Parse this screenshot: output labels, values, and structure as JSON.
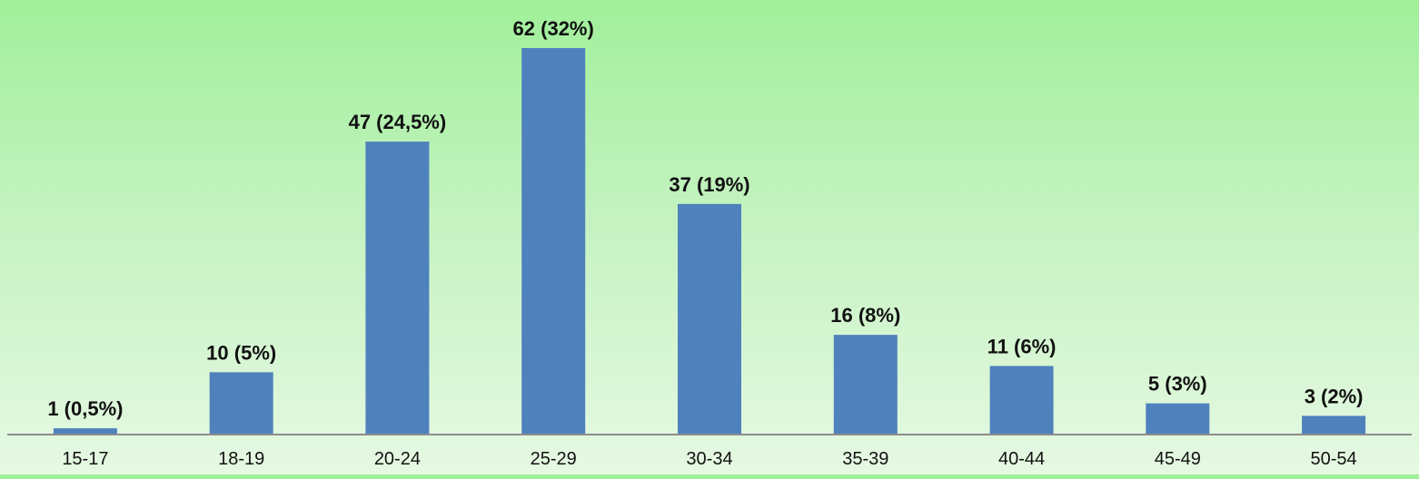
{
  "chart_data": {
    "type": "bar",
    "categories": [
      "15-17",
      "18-19",
      "20-24",
      "25-29",
      "30-34",
      "35-39",
      "40-44",
      "45-49",
      "50-54"
    ],
    "values": [
      1,
      10,
      47,
      62,
      37,
      16,
      11,
      5,
      3
    ],
    "data_labels": [
      "1 (0,5%)",
      "10 (5%)",
      "47 (24,5%)",
      "62 (32%)",
      "37 (19%)",
      "16 (8%)",
      "11 (6%)",
      "5 (3%)",
      "3 (2%)"
    ],
    "title": "",
    "xlabel": "",
    "ylabel": "",
    "ylim": [
      0,
      62
    ],
    "grid": false,
    "legend": "none",
    "colors": {
      "bar": "#4f81bd",
      "axis": "#8c8c8c",
      "text": "#111111"
    }
  }
}
